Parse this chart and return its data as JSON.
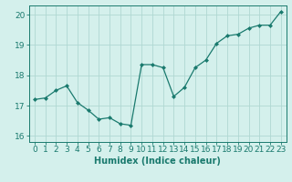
{
  "x": [
    0,
    1,
    2,
    3,
    4,
    5,
    6,
    7,
    8,
    9,
    10,
    11,
    12,
    13,
    14,
    15,
    16,
    17,
    18,
    19,
    20,
    21,
    22,
    23
  ],
  "y": [
    17.2,
    17.25,
    17.5,
    17.65,
    17.1,
    16.85,
    16.55,
    16.6,
    16.4,
    16.35,
    18.35,
    18.35,
    18.25,
    17.3,
    17.6,
    18.25,
    18.5,
    19.05,
    19.3,
    19.35,
    19.55,
    19.65,
    19.65,
    20.1
  ],
  "line_color": "#1a7a6e",
  "marker": "D",
  "marker_size": 2,
  "bg_color": "#d4f0ec",
  "grid_color": "#b0d8d2",
  "xlabel": "Humidex (Indice chaleur)",
  "xlim": [
    -0.5,
    23.5
  ],
  "ylim": [
    15.8,
    20.3
  ],
  "yticks": [
    16,
    17,
    18,
    19,
    20
  ],
  "xticks": [
    0,
    1,
    2,
    3,
    4,
    5,
    6,
    7,
    8,
    9,
    10,
    11,
    12,
    13,
    14,
    15,
    16,
    17,
    18,
    19,
    20,
    21,
    22,
    23
  ],
  "label_fontsize": 7,
  "tick_fontsize": 6.5
}
